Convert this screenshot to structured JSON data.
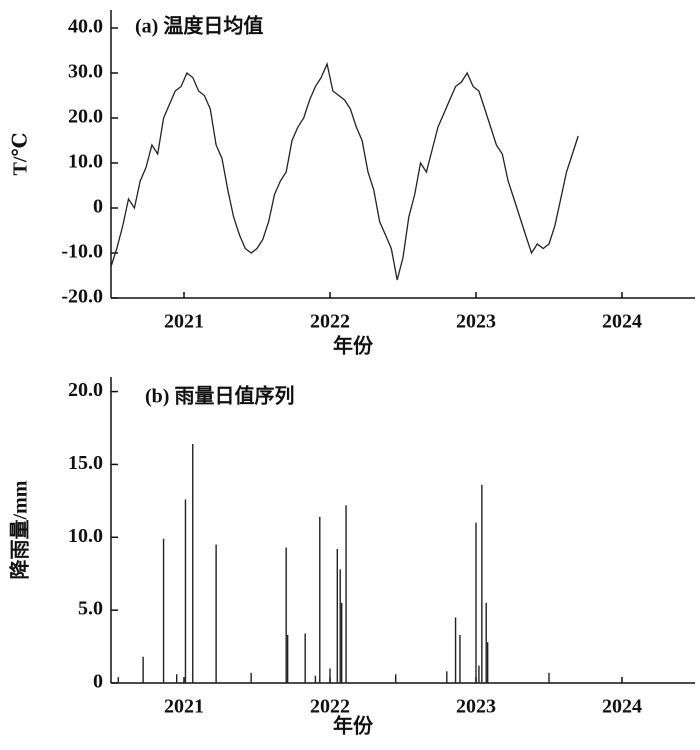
{
  "chart_data": [
    {
      "type": "line",
      "title": "(a) 温度日均值",
      "ylabel": "T/℃",
      "xlabel": "年份",
      "xlim": [
        2021,
        2025
      ],
      "ylim": [
        -20,
        44
      ],
      "xticks": [
        {
          "value": 2021.5,
          "label": "2021"
        },
        {
          "value": 2022.5,
          "label": "2022"
        },
        {
          "value": 2023.5,
          "label": "2023"
        },
        {
          "value": 2024.5,
          "label": "2024"
        }
      ],
      "yticks": [
        {
          "value": -20,
          "label": "-20.0"
        },
        {
          "value": -10,
          "label": "-10.0"
        },
        0,
        {
          "value": 10,
          "label": "10.0"
        },
        {
          "value": 20,
          "label": "20.0"
        },
        {
          "value": 30,
          "label": "30.0"
        },
        {
          "value": 40,
          "label": "40.0"
        }
      ],
      "color": "#222222",
      "x": [
        2021.0,
        2021.04,
        2021.08,
        2021.12,
        2021.16,
        2021.2,
        2021.24,
        2021.28,
        2021.32,
        2021.36,
        2021.4,
        2021.44,
        2021.48,
        2021.52,
        2021.56,
        2021.6,
        2021.64,
        2021.68,
        2021.72,
        2021.76,
        2021.8,
        2021.84,
        2021.88,
        2021.92,
        2021.96,
        2022.0,
        2022.04,
        2022.08,
        2022.12,
        2022.16,
        2022.2,
        2022.24,
        2022.28,
        2022.32,
        2022.36,
        2022.4,
        2022.44,
        2022.48,
        2022.52,
        2022.56,
        2022.6,
        2022.64,
        2022.68,
        2022.72,
        2022.76,
        2022.8,
        2022.84,
        2022.88,
        2022.92,
        2022.96,
        2023.0,
        2023.04,
        2023.08,
        2023.12,
        2023.16,
        2023.2,
        2023.24,
        2023.28,
        2023.32,
        2023.36,
        2023.4,
        2023.44,
        2023.48,
        2023.52,
        2023.56,
        2023.6,
        2023.64,
        2023.68,
        2023.72,
        2023.76,
        2023.8,
        2023.84,
        2023.88,
        2023.92,
        2023.96,
        2024.0,
        2024.04,
        2024.08,
        2024.12,
        2024.16,
        2024.2
      ],
      "values": [
        -13,
        -9,
        -4,
        2,
        0,
        6,
        9,
        14,
        12,
        20,
        23,
        26,
        27,
        30,
        29,
        26,
        25,
        22,
        14,
        11,
        4,
        -2,
        -6,
        -9,
        -10,
        -9,
        -7,
        -3,
        3,
        6,
        8,
        15,
        18,
        20,
        24,
        27,
        29,
        32,
        26,
        25,
        24,
        22,
        18,
        15,
        8,
        4,
        -3,
        -6,
        -9,
        -16,
        -11,
        -2,
        3,
        10,
        8,
        13,
        18,
        21,
        24,
        27,
        28,
        30,
        27,
        26,
        22,
        18,
        14,
        12,
        6,
        2,
        -2,
        -6,
        -10,
        -8,
        -9,
        -8,
        -4,
        2,
        8,
        12,
        16
      ]
    },
    {
      "type": "bar",
      "title": "(b) 雨量日值序列",
      "ylabel": "降雨量/mm",
      "xlabel": "年份",
      "xlim": [
        2021,
        2025
      ],
      "ylim": [
        0,
        21
      ],
      "xticks": [
        {
          "value": 2021.5,
          "label": "2021"
        },
        {
          "value": 2022.5,
          "label": "2022"
        },
        {
          "value": 2023.5,
          "label": "2023"
        },
        {
          "value": 2024.5,
          "label": "2024"
        }
      ],
      "yticks": [
        0,
        {
          "value": 5,
          "label": "5.0"
        },
        {
          "value": 10,
          "label": "10.0"
        },
        {
          "value": 15,
          "label": "15.0"
        },
        {
          "value": 20,
          "label": "20.0"
        }
      ],
      "color": "#222222",
      "x": [
        2021.05,
        2021.22,
        2021.36,
        2021.45,
        2021.51,
        2021.56,
        2021.72,
        2021.96,
        2022.2,
        2022.21,
        2022.33,
        2022.4,
        2022.43,
        2022.5,
        2022.55,
        2022.57,
        2022.58,
        2022.61,
        2022.95,
        2023.3,
        2023.36,
        2023.39,
        2023.5,
        2023.52,
        2023.54,
        2023.57,
        2023.58,
        2024.0
      ],
      "values": [
        0.4,
        1.8,
        9.9,
        0.6,
        12.6,
        16.4,
        9.5,
        0.7,
        9.3,
        3.3,
        3.4,
        0.5,
        11.4,
        1.0,
        9.2,
        7.8,
        5.5,
        12.2,
        0.6,
        0.8,
        4.5,
        3.3,
        11.0,
        1.2,
        13.6,
        5.5,
        2.8,
        0.7
      ]
    }
  ]
}
